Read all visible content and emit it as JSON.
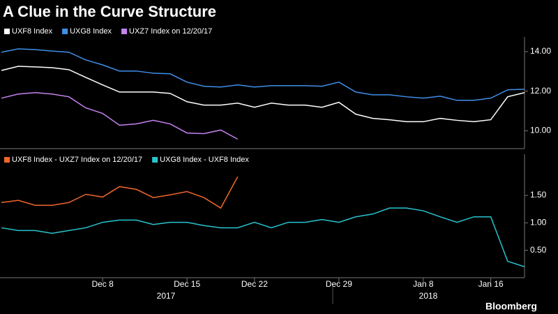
{
  "chart_data": [
    {
      "type": "line",
      "title": "A Clue in the Curve Structure",
      "ylim": [
        9.1,
        14.6
      ],
      "yticks": [
        {
          "value": 10,
          "label": "10.00"
        },
        {
          "value": 12,
          "label": "12.00"
        },
        {
          "value": 14,
          "label": "14.00"
        }
      ],
      "series": [
        {
          "name": "UXF8 Index",
          "color": "#ffffff",
          "values": [
            13.05,
            13.26,
            13.23,
            13.19,
            13.09,
            12.7,
            12.32,
            11.96,
            11.96,
            11.96,
            11.89,
            11.47,
            11.3,
            11.3,
            11.4,
            11.19,
            11.4,
            11.3,
            11.3,
            11.19,
            11.44,
            10.84,
            10.63,
            10.56,
            10.46,
            10.46,
            10.63,
            10.53,
            10.46,
            10.56,
            11.72,
            11.93
          ]
        },
        {
          "name": "UXG8 Index",
          "color": "#3f8fe8",
          "values": [
            13.97,
            14.14,
            14.1,
            14.03,
            13.97,
            13.58,
            13.33,
            13.02,
            13.02,
            12.91,
            12.88,
            12.46,
            12.25,
            12.21,
            12.32,
            12.21,
            12.28,
            12.28,
            12.28,
            12.25,
            12.46,
            11.96,
            11.82,
            11.82,
            11.72,
            11.65,
            11.75,
            11.54,
            11.54,
            11.65,
            12.07,
            12.1
          ]
        },
        {
          "name": "UXZ7 Index on 12/20/17",
          "color": "#c583f0",
          "values": [
            11.65,
            11.86,
            11.93,
            11.86,
            11.72,
            11.16,
            10.88,
            10.28,
            10.35,
            10.53,
            10.35,
            9.89,
            9.86,
            10.04,
            9.58,
            null,
            null,
            null,
            null,
            null,
            null,
            null,
            null,
            null,
            null,
            null,
            null,
            null,
            null,
            null,
            null,
            null
          ]
        }
      ]
    },
    {
      "type": "line",
      "categories": [
        null,
        null,
        null,
        null,
        null,
        null,
        "Dec 8",
        null,
        null,
        null,
        null,
        "Dec 15",
        null,
        null,
        null,
        "Dec 22",
        null,
        null,
        null,
        null,
        "Dec 29",
        null,
        null,
        null,
        null,
        "Jan 8",
        null,
        null,
        null,
        "Jan 16",
        null,
        null
      ],
      "x_group_labels": [
        "2017",
        "2018"
      ],
      "ylim": [
        0,
        2.2
      ],
      "yticks": [
        {
          "value": 0.5,
          "label": "0.50"
        },
        {
          "value": 1,
          "label": "1.00"
        },
        {
          "value": 1.5,
          "label": "1.50"
        }
      ],
      "series": [
        {
          "name": "UXF8 Index - UXZ7 Index on 12/20/17",
          "color": "#f0672b",
          "values": [
            1.37,
            1.41,
            1.32,
            1.32,
            1.37,
            1.52,
            1.47,
            1.66,
            1.61,
            1.46,
            1.51,
            1.57,
            1.46,
            1.27,
            1.84,
            null,
            null,
            null,
            null,
            null,
            null,
            null,
            null,
            null,
            null,
            null,
            null,
            null,
            null,
            null,
            null,
            null
          ]
        },
        {
          "name": "UXG8 Index - UXF8 Index",
          "color": "#27c4cf",
          "values": [
            0.91,
            0.86,
            0.86,
            0.81,
            0.86,
            0.91,
            1.01,
            1.05,
            1.05,
            0.97,
            1.01,
            1.01,
            0.95,
            0.91,
            0.91,
            1.01,
            0.91,
            1.01,
            1.01,
            1.06,
            1.01,
            1.11,
            1.16,
            1.27,
            1.27,
            1.22,
            1.11,
            1.01,
            1.11,
            1.11,
            0.3,
            0.2
          ]
        }
      ]
    }
  ]
}
